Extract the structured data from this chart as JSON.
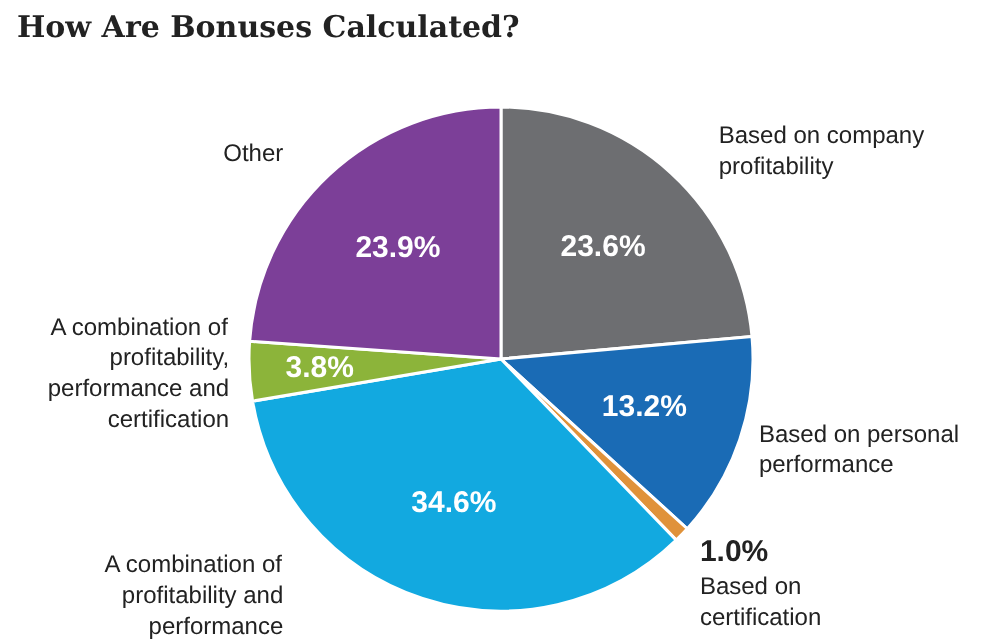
{
  "chart_data": {
    "type": "pie",
    "title": "How Are Bonuses Calculated?",
    "categories": [
      "Based on company profitability",
      "Based on personal performance",
      "Based on certification",
      "A combination of profitability and performance",
      "A combination of profitability, performance and certification",
      "Other"
    ],
    "values": [
      23.6,
      13.2,
      1.0,
      34.6,
      3.8,
      23.9
    ],
    "value_labels": [
      "23.6%",
      "13.2%",
      "1.0%",
      "34.6%",
      "3.8%",
      "23.9%"
    ],
    "colors": [
      "#6d6e71",
      "#1a6bb5",
      "#e0923a",
      "#12a9e0",
      "#8cb43a",
      "#7c3f98"
    ]
  }
}
